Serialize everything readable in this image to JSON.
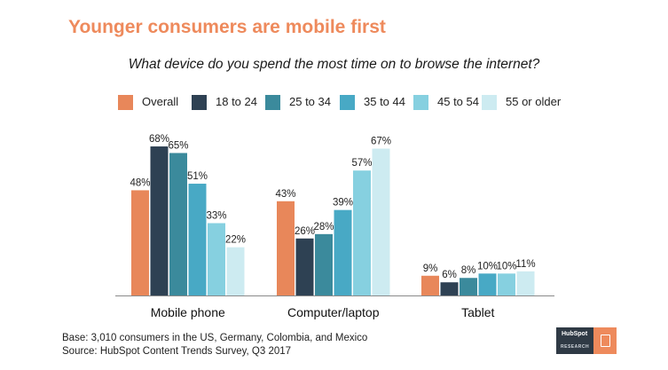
{
  "title": "Younger consumers are mobile first",
  "subtitle": "What device do you spend the most time on to browse the internet?",
  "footer": {
    "base": "Base: 3,010 consumers in the US, Germany, Colombia, and Mexico",
    "source": "Source: HubSpot Content Trends Survey, Q3 2017"
  },
  "logo": {
    "brand": "HubSpot",
    "label": "RESEARCH",
    "icon": "tablet-icon"
  },
  "colors": {
    "title": "#EE8A5C",
    "series": [
      "#E8875A",
      "#2E4153",
      "#3B8A9C",
      "#48A9C5",
      "#86D0E0",
      "#CDEBF1"
    ]
  },
  "chart_data": {
    "type": "bar",
    "title": "What device do you spend the most time on to browse the internet?",
    "categories": [
      "Mobile phone",
      "Computer/laptop",
      "Tablet"
    ],
    "series": [
      {
        "name": "Overall",
        "values": [
          48,
          43,
          9
        ]
      },
      {
        "name": "18 to 24",
        "values": [
          68,
          26,
          6
        ]
      },
      {
        "name": "25 to 34",
        "values": [
          65,
          28,
          8
        ]
      },
      {
        "name": "35 to 44",
        "values": [
          51,
          39,
          10
        ]
      },
      {
        "name": "45 to 54",
        "values": [
          33,
          57,
          10
        ]
      },
      {
        "name": "55 or older",
        "values": [
          22,
          67,
          11
        ]
      }
    ],
    "value_suffix": "%",
    "ylim": [
      0,
      70
    ],
    "grid": false,
    "legend": "top"
  }
}
